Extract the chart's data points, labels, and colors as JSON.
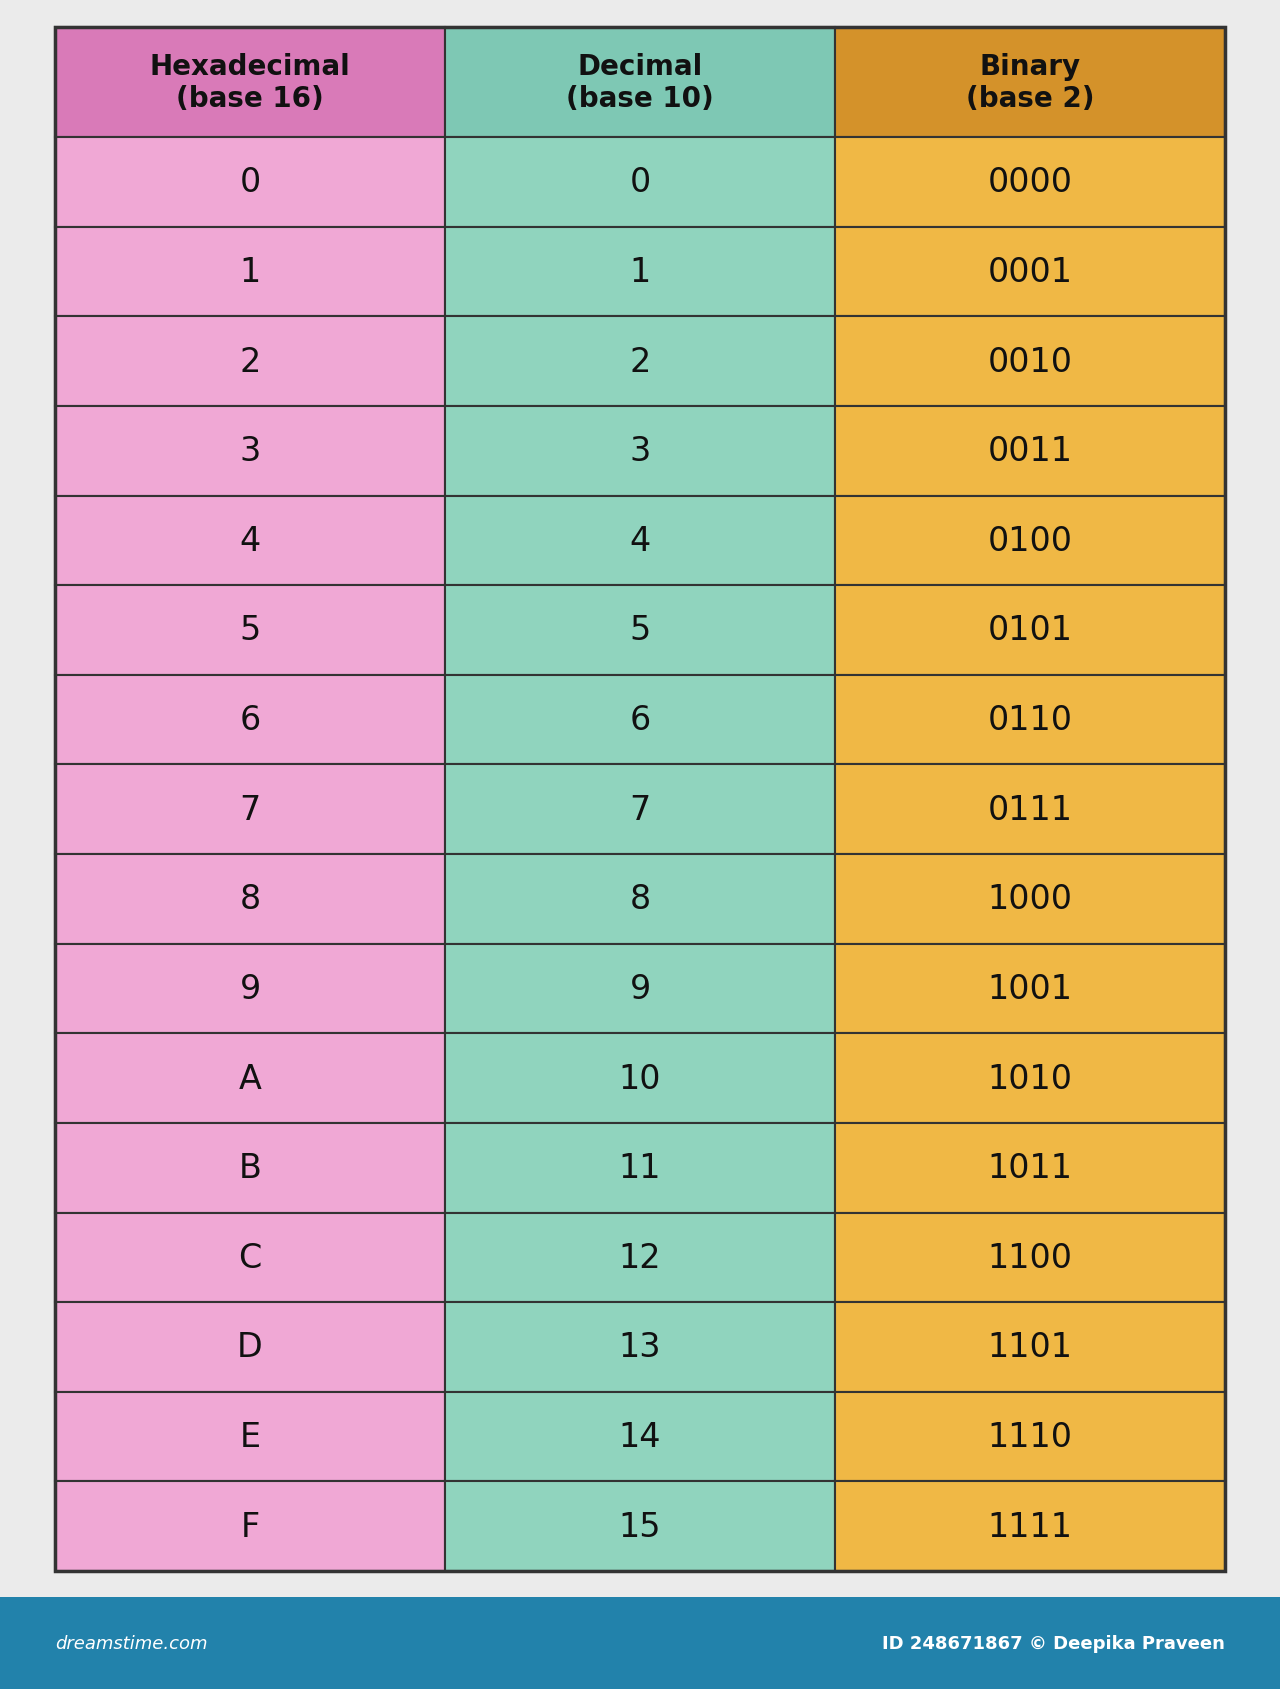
{
  "background_color": "#ebebeb",
  "header_row": [
    {
      "text": "Hexadecimal\n(base 16)",
      "color": "#d97ab8"
    },
    {
      "text": "Decimal\n(base 10)",
      "color": "#7ec8b4"
    },
    {
      "text": "Binary\n(base 2)",
      "color": "#d4922a"
    }
  ],
  "data_rows": [
    [
      "0",
      "0",
      "0000"
    ],
    [
      "1",
      "1",
      "0001"
    ],
    [
      "2",
      "2",
      "0010"
    ],
    [
      "3",
      "3",
      "0011"
    ],
    [
      "4",
      "4",
      "0100"
    ],
    [
      "5",
      "5",
      "0101"
    ],
    [
      "6",
      "6",
      "0110"
    ],
    [
      "7",
      "7",
      "0111"
    ],
    [
      "8",
      "8",
      "1000"
    ],
    [
      "9",
      "9",
      "1001"
    ],
    [
      "A",
      "10",
      "1010"
    ],
    [
      "B",
      "11",
      "1011"
    ],
    [
      "C",
      "12",
      "1100"
    ],
    [
      "D",
      "13",
      "1101"
    ],
    [
      "E",
      "14",
      "1110"
    ],
    [
      "F",
      "15",
      "1111"
    ]
  ],
  "col_colors": [
    "#f0a8d5",
    "#90d4be",
    "#f0b845"
  ],
  "header_text_color": "#111111",
  "cell_text_color": "#111111",
  "border_color": "#333333",
  "footer_bg_color": "#2282ab",
  "footer_left_text": "dreamstime.com",
  "footer_right_text": "ID 248671867 © Deepika Praveen",
  "footer_text_color": "#ffffff",
  "num_data_rows": 16,
  "header_fontsize": 20,
  "cell_fontsize": 24,
  "footer_fontsize": 13
}
